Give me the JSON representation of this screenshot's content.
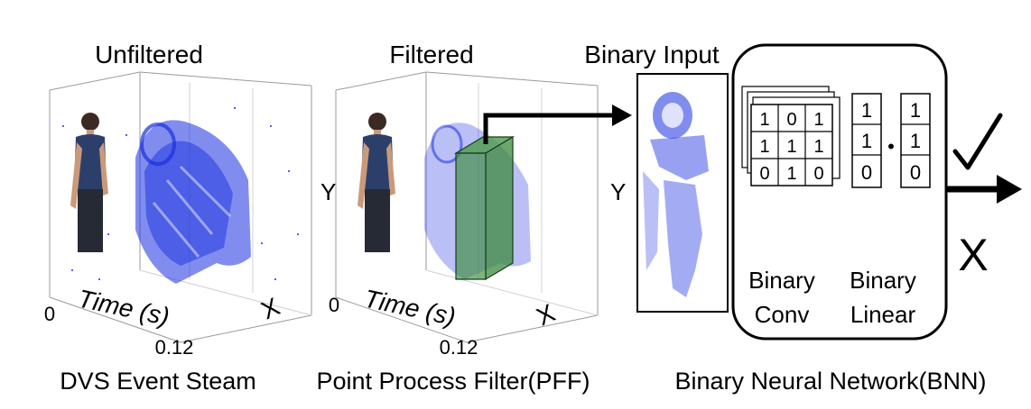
{
  "panels": {
    "unfiltered": {
      "title": "Unfiltered",
      "time_label": "Time (s)",
      "t_start": "0",
      "t_end": "0.12",
      "x_label": "X",
      "caption": "DVS Event Steam"
    },
    "filtered": {
      "title": "Filtered",
      "time_label": "Time (s)",
      "t_start": "0",
      "t_end": "0.12",
      "x_label": "X",
      "y_label": "Y",
      "caption": "Point Process Filter(PFF)"
    },
    "bnn": {
      "input_title": "Binary Input",
      "y_label": "Y",
      "conv_label_1": "Binary",
      "conv_label_2": "Conv",
      "linear_label_1": "Binary",
      "linear_label_2": "Linear",
      "dot": "•",
      "check": "✓",
      "cross": "X",
      "caption": "Binary Neural Network(BNN)"
    }
  },
  "conv_matrix": [
    [
      "1",
      "0",
      "1"
    ],
    [
      "1",
      "1",
      "1"
    ],
    [
      "0",
      "1",
      "0"
    ]
  ],
  "linear_vec_a": [
    "1",
    "1",
    "0"
  ],
  "linear_vec_b": [
    "1",
    "1",
    "0"
  ],
  "colors": {
    "event_blue": "#1a2fe0",
    "filter_green": "#3c8a3c",
    "axis_gray": "#9a9a9a",
    "ink": "#000000"
  }
}
